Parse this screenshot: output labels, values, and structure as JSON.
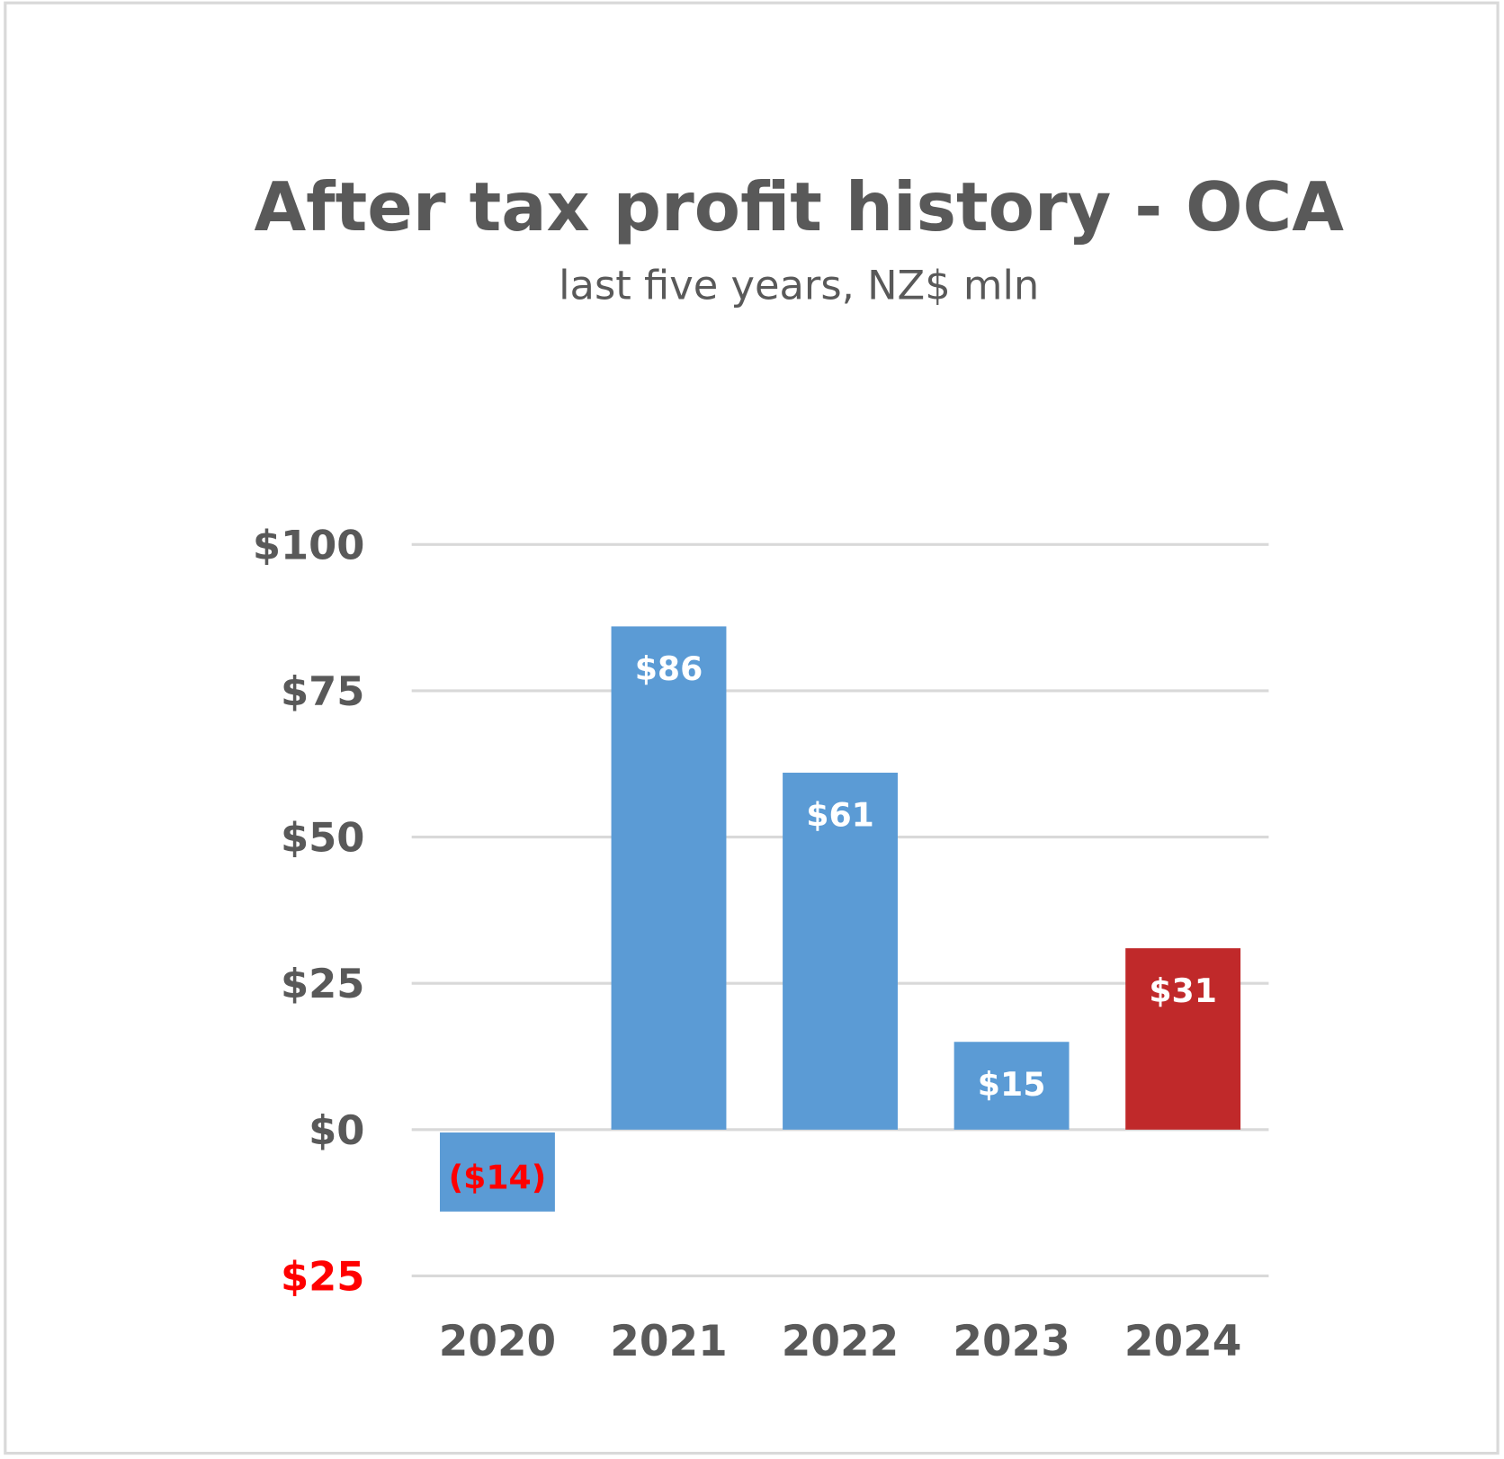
{
  "chart_data": {
    "type": "bar",
    "title": "After tax profit history - OCA",
    "subtitle": "last five years, NZ$ mln",
    "xlabel": "",
    "ylabel": "",
    "categories": [
      "2020",
      "2021",
      "2022",
      "2023",
      "2024"
    ],
    "values": [
      -14,
      86,
      61,
      15,
      31
    ],
    "data_labels": [
      "($14)",
      "$86",
      "$61",
      "$15",
      "$31"
    ],
    "bar_colors": [
      "#5B9BD5",
      "#5B9BD5",
      "#5B9BD5",
      "#5B9BD5",
      "#C0292A"
    ],
    "data_label_colors": [
      "#FF0000",
      "#FFFFFF",
      "#FFFFFF",
      "#FFFFFF",
      "#FFFFFF"
    ],
    "ylim": [
      -25,
      100
    ],
    "yticks": [
      100,
      75,
      50,
      25,
      0,
      -25
    ],
    "ytick_labels": [
      "$100",
      "$75",
      "$50",
      "$25",
      "$0",
      "$25"
    ],
    "ytick_label_colors": [
      "#595959",
      "#595959",
      "#595959",
      "#595959",
      "#595959",
      "#FF0000"
    ],
    "grid": true,
    "legend": "none",
    "colors": {
      "text": "#595959",
      "grid": "#D9D9D9",
      "border": "#D9D9D9"
    }
  }
}
